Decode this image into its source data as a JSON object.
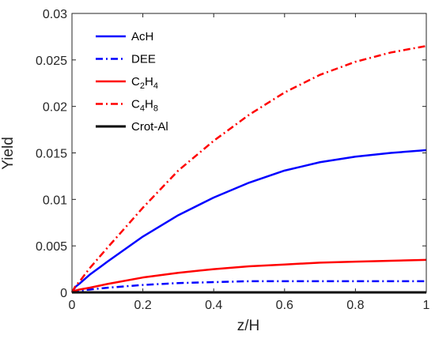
{
  "chart_data": {
    "type": "line",
    "xlabel": "z/H",
    "ylabel": "Yield",
    "xlim": [
      0,
      1
    ],
    "ylim": [
      0,
      0.03
    ],
    "xticks": [
      0,
      0.2,
      0.4,
      0.6,
      0.8,
      1
    ],
    "xtick_labels": [
      "0",
      "0.2",
      "0.4",
      "0.6",
      "0.8",
      "1"
    ],
    "yticks": [
      0,
      0.005,
      0.01,
      0.015,
      0.02,
      0.025,
      0.03
    ],
    "ytick_labels": [
      "0",
      "0.005",
      "0.01",
      "0.015",
      "0.02",
      "0.025",
      "0.03"
    ],
    "grid": false,
    "legend_position": "top-left",
    "x": [
      0,
      0.01,
      0.02,
      0.05,
      0.1,
      0.2,
      0.3,
      0.4,
      0.5,
      0.6,
      0.7,
      0.8,
      0.9,
      1.0
    ],
    "series": [
      {
        "name": "AcH",
        "name_parts": [
          {
            "t": "AcH",
            "sub": false
          }
        ],
        "color": "#0000ff",
        "dash": "solid",
        "values": [
          0,
          0.0006,
          0.0009,
          0.0019,
          0.0033,
          0.006,
          0.0083,
          0.0102,
          0.0118,
          0.0131,
          0.014,
          0.0146,
          0.015,
          0.0153
        ]
      },
      {
        "name": "DEE",
        "name_parts": [
          {
            "t": "DEE",
            "sub": false
          }
        ],
        "color": "#0000ff",
        "dash": "dashdot",
        "values": [
          0,
          0.0001,
          0.0002,
          0.0003,
          0.0005,
          0.0008,
          0.001,
          0.0011,
          0.0012,
          0.0012,
          0.0012,
          0.0012,
          0.0012,
          0.0012
        ]
      },
      {
        "name": "C2H4",
        "name_parts": [
          {
            "t": "C",
            "sub": false
          },
          {
            "t": "2",
            "sub": true
          },
          {
            "t": "H",
            "sub": false
          },
          {
            "t": "4",
            "sub": true
          }
        ],
        "color": "#ff0000",
        "dash": "solid",
        "values": [
          0,
          0.0002,
          0.0003,
          0.0005,
          0.0009,
          0.0016,
          0.0021,
          0.0025,
          0.0028,
          0.003,
          0.0032,
          0.0033,
          0.0034,
          0.0035
        ]
      },
      {
        "name": "C4H8",
        "name_parts": [
          {
            "t": "C",
            "sub": false
          },
          {
            "t": "4",
            "sub": true
          },
          {
            "t": "H",
            "sub": false
          },
          {
            "t": "8",
            "sub": true
          }
        ],
        "color": "#ff0000",
        "dash": "dashdot",
        "values": [
          0,
          0.0007,
          0.0011,
          0.0026,
          0.0048,
          0.0091,
          0.0131,
          0.0163,
          0.0191,
          0.0215,
          0.0234,
          0.0248,
          0.0258,
          0.0265
        ]
      },
      {
        "name": "Crot-Al",
        "name_parts": [
          {
            "t": "Crot-Al",
            "sub": false
          }
        ],
        "color": "#000000",
        "dash": "solid",
        "values": [
          0,
          0,
          0,
          0,
          0,
          0,
          0,
          0,
          0,
          0,
          0,
          0,
          0,
          0
        ]
      }
    ]
  }
}
